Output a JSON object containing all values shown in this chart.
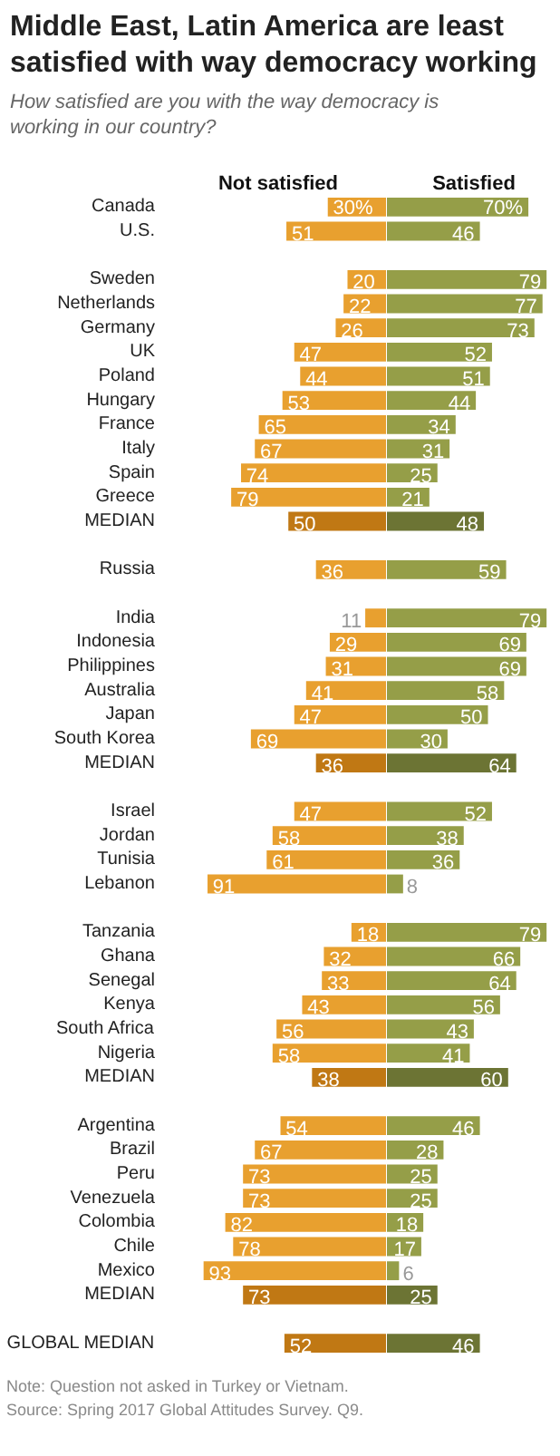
{
  "chart_data": [
    {
      "type": "bar",
      "orientation": "horizontal",
      "data_labels": true,
      "tick_labels": "y",
      "title": "Middle East, Latin America are least satisfied with way democracy working",
      "subtitle": "How satisfied are you with the way democracy is working in our country?",
      "xlabel": "Not satisfied",
      "categories": [
        "Canada",
        "U.S.",
        null,
        "Sweden",
        "Netherlands",
        "Germany",
        "UK",
        "Poland",
        "Hungary",
        "France",
        "Italy",
        "Spain",
        "Greece",
        "MEDIAN",
        null,
        "Russia",
        null,
        "India",
        "Indonesia",
        "Philippines",
        "Australia",
        "Japan",
        "South Korea",
        "MEDIAN",
        null,
        "Israel",
        "Jordan",
        "Tunisia",
        "Lebanon",
        null,
        "Tanzania",
        "Ghana",
        "Senegal",
        "Kenya",
        "South Africa",
        "Nigeria",
        "MEDIAN",
        null,
        "Argentina",
        "Brazil",
        "Peru",
        "Venezuela",
        "Colombia",
        "Chile",
        "Mexico",
        "MEDIAN",
        null,
        "GLOBAL MEDIAN"
      ],
      "values": [
        30,
        51,
        null,
        20,
        22,
        26,
        47,
        44,
        53,
        65,
        67,
        74,
        79,
        50,
        null,
        36,
        null,
        11,
        29,
        31,
        41,
        47,
        69,
        36,
        null,
        47,
        58,
        61,
        91,
        null,
        18,
        32,
        33,
        43,
        56,
        58,
        38,
        null,
        54,
        67,
        73,
        73,
        82,
        78,
        93,
        73,
        null,
        52
      ],
      "value_labels": [
        "30%",
        "51",
        null,
        "20",
        "22",
        "26",
        "47",
        "44",
        "53",
        "65",
        "67",
        "74",
        "79",
        "50",
        null,
        "36",
        null,
        "11",
        "29",
        "31",
        "41",
        "47",
        "69",
        "36",
        null,
        "47",
        "58",
        "61",
        "91",
        null,
        "18",
        "32",
        "33",
        "43",
        "56",
        "58",
        "38",
        null,
        "54",
        "67",
        "73",
        "73",
        "82",
        "78",
        "93",
        "73",
        null,
        "52"
      ],
      "colors": [
        "#e8a02f",
        "#e8a02f",
        null,
        "#e8a02f",
        "#e8a02f",
        "#e8a02f",
        "#e8a02f",
        "#e8a02f",
        "#e8a02f",
        "#e8a02f",
        "#e8a02f",
        "#e8a02f",
        "#e8a02f",
        "#c07814",
        null,
        "#e8a02f",
        null,
        "#e8a02f",
        "#e8a02f",
        "#e8a02f",
        "#e8a02f",
        "#e8a02f",
        "#e8a02f",
        "#c07814",
        null,
        "#e8a02f",
        "#e8a02f",
        "#e8a02f",
        "#e8a02f",
        null,
        "#e8a02f",
        "#e8a02f",
        "#e8a02f",
        "#e8a02f",
        "#e8a02f",
        "#e8a02f",
        "#c07814",
        null,
        "#e8a02f",
        "#e8a02f",
        "#e8a02f",
        "#e8a02f",
        "#e8a02f",
        "#e8a02f",
        "#e8a02f",
        "#c07814",
        null,
        "#c07814"
      ],
      "annotations": [
        "Note: Question not asked in Turkey or Vietnam.",
        "Source: Spring 2017 Global Attitudes Survey. Q9."
      ]
    },
    {
      "type": "bar",
      "orientation": "horizontal",
      "data_labels": true,
      "tick_labels": false,
      "xlabel": "Satisfied",
      "categories": [
        "Canada",
        "U.S.",
        null,
        "Sweden",
        "Netherlands",
        "Germany",
        "UK",
        "Poland",
        "Hungary",
        "France",
        "Italy",
        "Spain",
        "Greece",
        "MEDIAN",
        null,
        "Russia",
        null,
        "India",
        "Indonesia",
        "Philippines",
        "Australia",
        "Japan",
        "South Korea",
        "MEDIAN",
        null,
        "Israel",
        "Jordan",
        "Tunisia",
        "Lebanon",
        null,
        "Tanzania",
        "Ghana",
        "Senegal",
        "Kenya",
        "South Africa",
        "Nigeria",
        "MEDIAN",
        null,
        "Argentina",
        "Brazil",
        "Peru",
        "Venezuela",
        "Colombia",
        "Chile",
        "Mexico",
        "MEDIAN",
        null,
        "GLOBAL MEDIAN"
      ],
      "values": [
        70,
        46,
        null,
        79,
        77,
        73,
        52,
        51,
        44,
        34,
        31,
        25,
        21,
        48,
        null,
        59,
        null,
        79,
        69,
        69,
        58,
        50,
        30,
        64,
        null,
        52,
        38,
        36,
        8,
        null,
        79,
        66,
        64,
        56,
        43,
        41,
        60,
        null,
        46,
        28,
        25,
        25,
        18,
        17,
        6,
        25,
        null,
        46
      ],
      "value_labels": [
        "70%",
        "46",
        null,
        "79",
        "77",
        "73",
        "52",
        "51",
        "44",
        "34",
        "31",
        "25",
        "21",
        "48",
        null,
        "59",
        null,
        "79",
        "69",
        "69",
        "58",
        "50",
        "30",
        "64",
        null,
        "52",
        "38",
        "36",
        "8",
        null,
        "79",
        "66",
        "64",
        "56",
        "43",
        "41",
        "60",
        null,
        "46",
        "28",
        "25",
        "25",
        "18",
        "17",
        "6",
        "25",
        null,
        "46"
      ],
      "colors": [
        "#959e48",
        "#959e48",
        null,
        "#959e48",
        "#959e48",
        "#959e48",
        "#959e48",
        "#959e48",
        "#959e48",
        "#959e48",
        "#959e48",
        "#959e48",
        "#959e48",
        "#6c7434",
        null,
        "#959e48",
        null,
        "#959e48",
        "#959e48",
        "#959e48",
        "#959e48",
        "#959e48",
        "#959e48",
        "#6c7434",
        null,
        "#959e48",
        "#959e48",
        "#959e48",
        "#959e48",
        null,
        "#959e48",
        "#959e48",
        "#959e48",
        "#959e48",
        "#959e48",
        "#959e48",
        "#6c7434",
        null,
        "#959e48",
        "#959e48",
        "#959e48",
        "#959e48",
        "#959e48",
        "#959e48",
        "#959e48",
        "#6c7434",
        null,
        "#6c7434"
      ]
    }
  ]
}
